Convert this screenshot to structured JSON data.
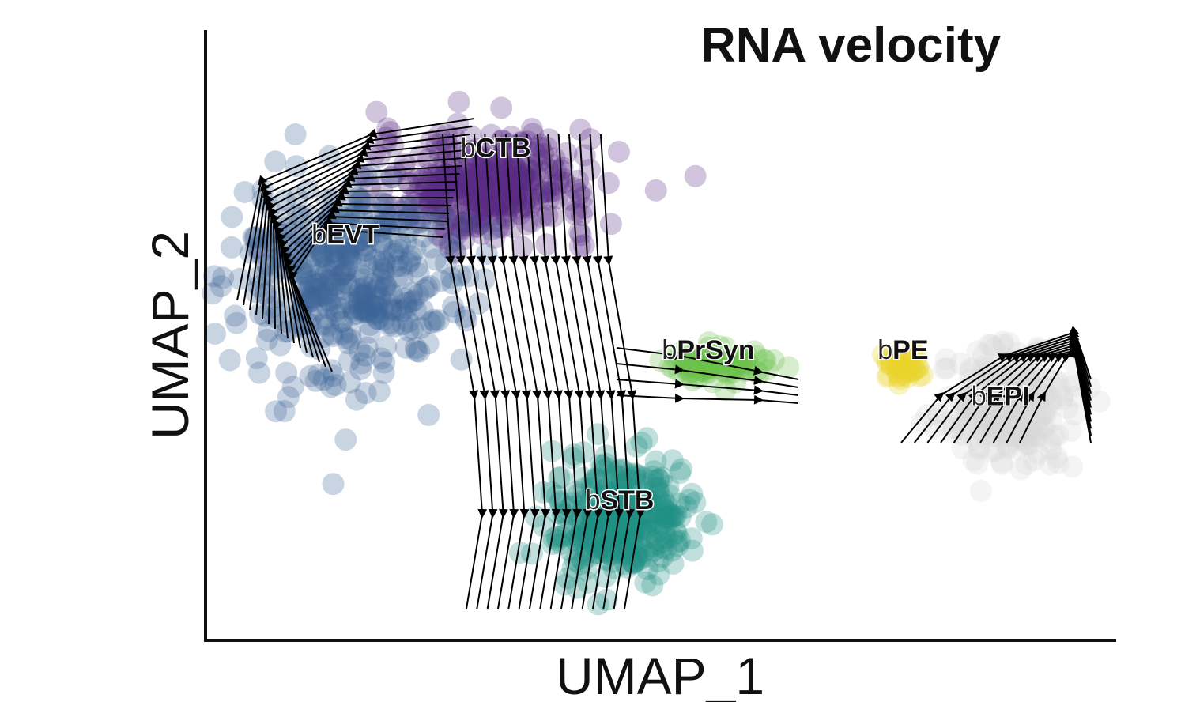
{
  "chart_data": {
    "type": "scatter",
    "title": "RNA velocity",
    "xlabel": "UMAP_1",
    "ylabel": "UMAP_2",
    "grid": false,
    "legend": "none",
    "xlim": [
      0,
      100
    ],
    "ylim": [
      0,
      100
    ],
    "overlay": "velocity streamlines with arrowheads",
    "label_prefix_color": "#ffffff",
    "clusters": [
      {
        "label": "bCTB",
        "prefix": "b",
        "name": "CTB",
        "color": "#5b2a86",
        "center": [
          30,
          76
        ],
        "spread": [
          11,
          8
        ],
        "label_at": [
          31,
          81
        ]
      },
      {
        "label": "bEVT",
        "prefix": "b",
        "name": "EVT",
        "color": "#3d6396",
        "center": [
          14,
          60
        ],
        "spread": [
          11,
          16
        ],
        "label_at": [
          14,
          66
        ]
      },
      {
        "label": "bSTB",
        "prefix": "b",
        "name": "STB",
        "color": "#1f8f86",
        "center": [
          45,
          18
        ],
        "spread": [
          7,
          9
        ],
        "label_at": [
          45,
          20
        ]
      },
      {
        "label": "bPrSyn",
        "prefix": "b",
        "name": "PrSyn",
        "color": "#6cc24a",
        "center": [
          56,
          45
        ],
        "spread": [
          5,
          2.5
        ],
        "label_at": [
          55,
          46
        ]
      },
      {
        "label": "bPE",
        "prefix": "b",
        "name": "PE",
        "color": "#ead42c",
        "center": [
          77,
          45
        ],
        "spread": [
          2,
          3
        ],
        "label_at": [
          77,
          46
        ]
      },
      {
        "label": "bEPI",
        "prefix": "b",
        "name": "EPI",
        "color": "#d6d6d6",
        "center": [
          89,
          38
        ],
        "spread": [
          7,
          9
        ],
        "label_at": [
          88,
          38
        ]
      }
    ]
  }
}
